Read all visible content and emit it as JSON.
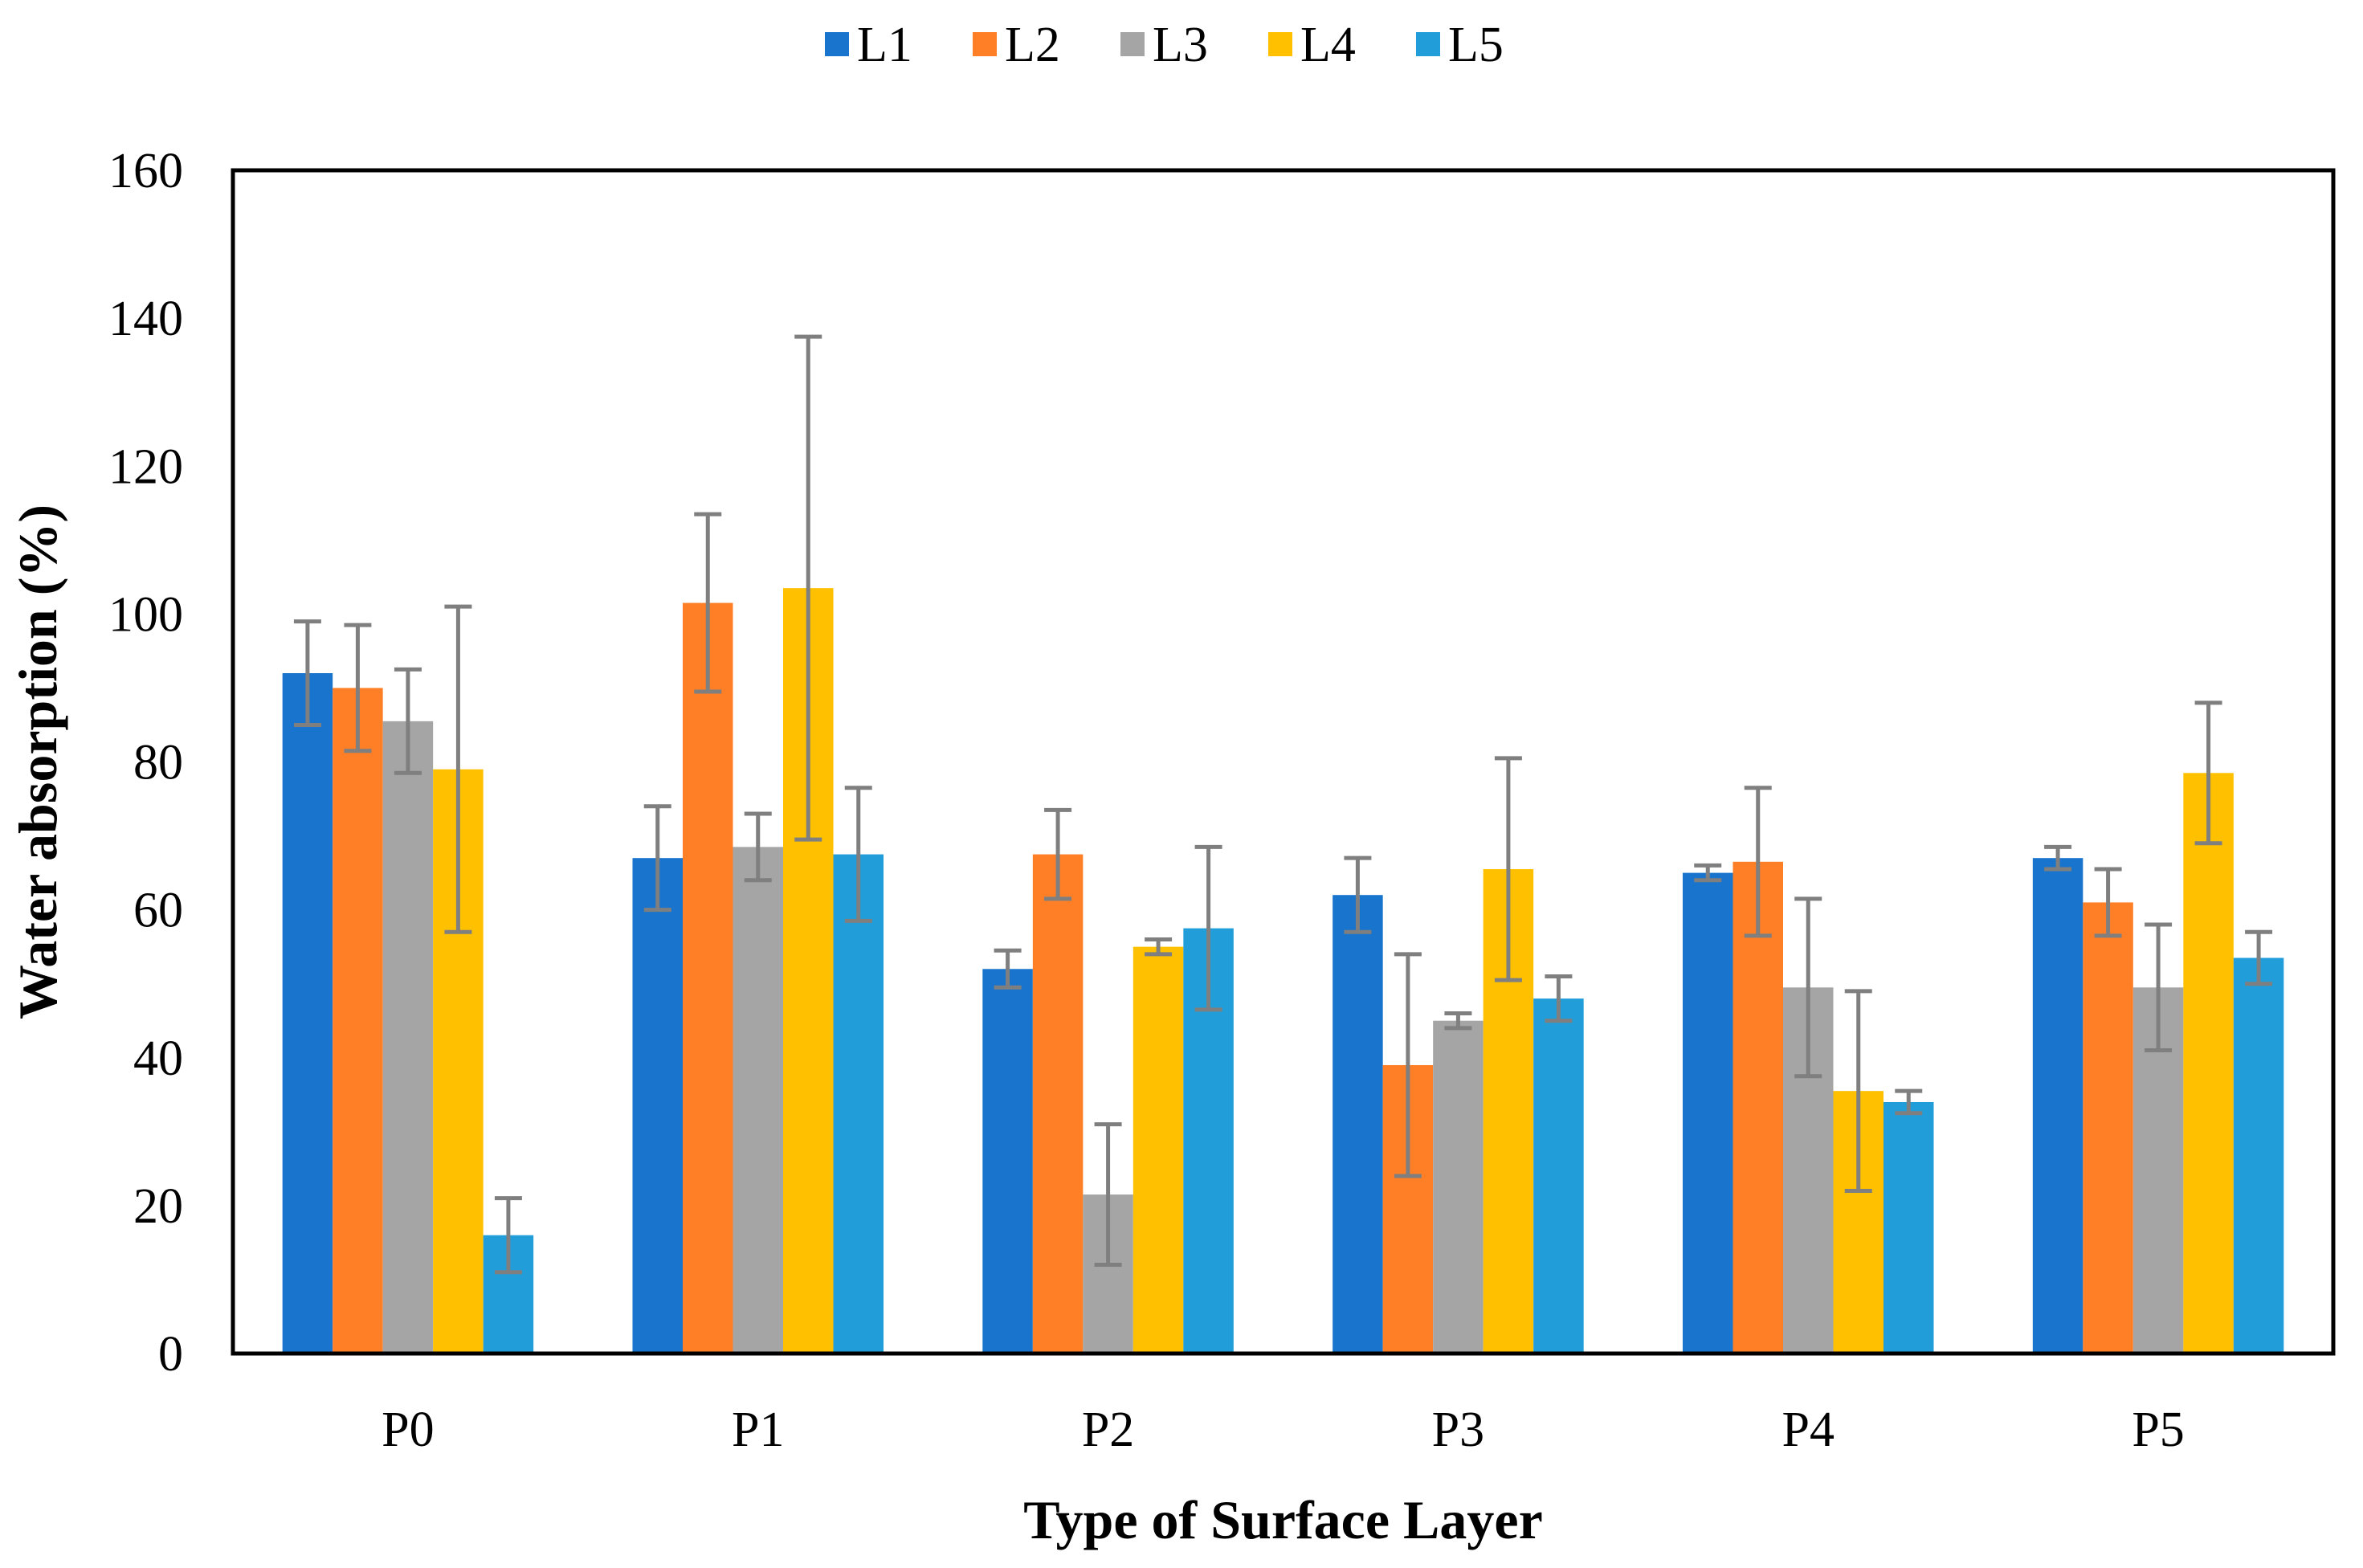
{
  "chart_data": {
    "type": "bar",
    "title": "",
    "xlabel": "Type of Surface Layer",
    "ylabel": "Water absorption (%)",
    "ylim": [
      0,
      160
    ],
    "yticks": [
      0,
      20,
      40,
      60,
      80,
      100,
      120,
      140,
      160
    ],
    "categories": [
      "P0",
      "P1",
      "P2",
      "P3",
      "P4",
      "P5"
    ],
    "legend_position": "top-center",
    "grid": false,
    "error_bar_color": "#7F7F7F",
    "series": [
      {
        "name": "L1",
        "color": "#1874CD",
        "values": [
          92,
          67,
          52,
          62,
          65,
          67
        ],
        "errors": [
          7,
          7,
          2.5,
          5,
          1,
          1.5
        ]
      },
      {
        "name": "L2",
        "color": "#FF7F27",
        "values": [
          90,
          101.5,
          67.5,
          39,
          66.5,
          61
        ],
        "errors": [
          8.5,
          12,
          6,
          15,
          10,
          4.5
        ]
      },
      {
        "name": "L3",
        "color": "#A5A5A5",
        "values": [
          85.5,
          68.5,
          21.5,
          45,
          49.5,
          49.5
        ],
        "errors": [
          7,
          4.5,
          9.5,
          1,
          12,
          8.5
        ]
      },
      {
        "name": "L4",
        "color": "#FFC000",
        "values": [
          79,
          103.5,
          55,
          65.5,
          35.5,
          78.5
        ],
        "errors": [
          22,
          34,
          1,
          15,
          13.5,
          9.5
        ]
      },
      {
        "name": "L5",
        "color": "#219DD9",
        "values": [
          16,
          67.5,
          57.5,
          48,
          34,
          53.5
        ],
        "errors": [
          5,
          9,
          11,
          3,
          1.5,
          3.5
        ]
      }
    ]
  }
}
